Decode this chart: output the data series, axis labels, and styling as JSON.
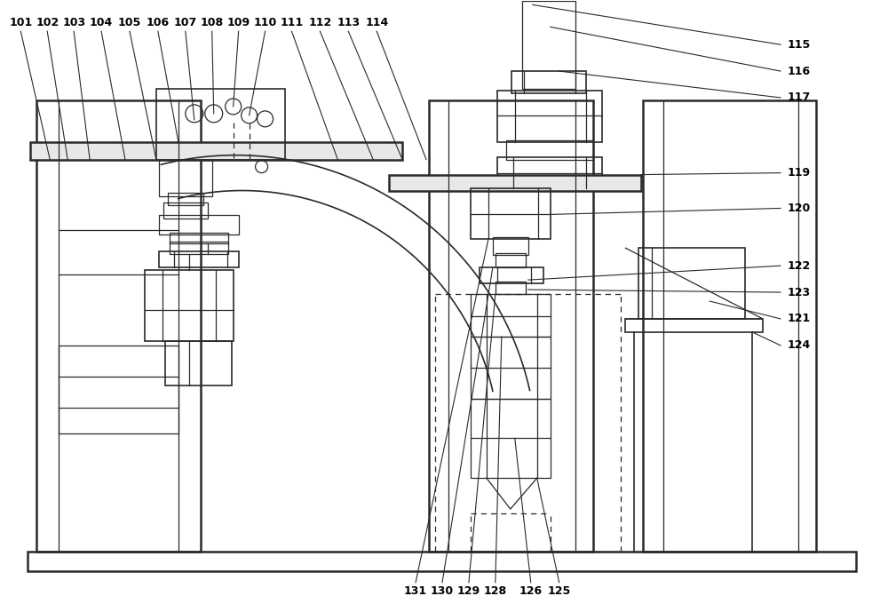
{
  "bg_color": "#ffffff",
  "line_color": "#2a2a2a",
  "lw_thin": 0.9,
  "lw_med": 1.2,
  "lw_thick": 1.8,
  "figsize": [
    10.0,
    6.89
  ],
  "dpi": 100
}
